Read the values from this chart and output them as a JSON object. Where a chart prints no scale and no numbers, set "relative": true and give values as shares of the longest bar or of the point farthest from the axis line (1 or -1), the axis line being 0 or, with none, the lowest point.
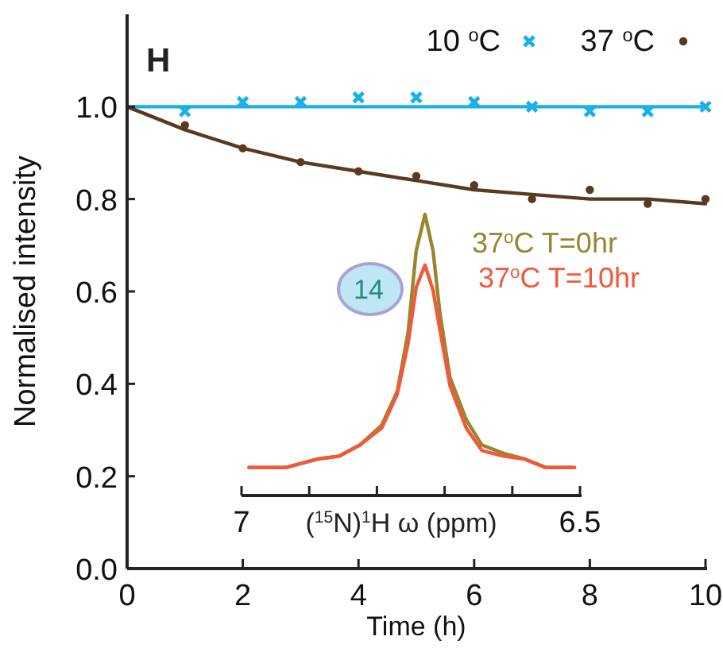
{
  "chart_data": [
    {
      "type": "scatter",
      "xlabel": "Time (h)",
      "ylabel": "Normalised intensity",
      "annotations": [
        "H"
      ],
      "xlim": [
        0,
        10
      ],
      "ylim": [
        0,
        1.2
      ],
      "xticks": [
        0,
        2,
        4,
        6,
        8,
        10
      ],
      "yticks": [
        {
          "value": 0,
          "label": "0.0"
        },
        {
          "value": 0.2,
          "label": "0.2"
        },
        {
          "value": 0.4,
          "label": "0.4"
        },
        {
          "value": 0.6,
          "label": "0.6"
        },
        {
          "value": 0.8,
          "label": "0.8"
        },
        {
          "value": 1,
          "label": "1.0"
        }
      ],
      "grid": false,
      "legend": "top right",
      "series": [
        {
          "type": "scatter",
          "name": "10 $^{o}$C",
          "color": "#1ab0e8",
          "marker": "cross",
          "x": [
            1,
            2,
            3,
            4,
            5,
            6,
            7,
            8,
            9,
            10
          ],
          "values": [
            0.99,
            1.01,
            1.01,
            1.02,
            1.02,
            1.01,
            1.0,
            0.99,
            0.99,
            1.0
          ]
        },
        {
          "type": "line",
          "color": "#1ab0e8",
          "marker": "none",
          "x": [
            0,
            10
          ],
          "values": [
            1.0,
            1.0
          ]
        },
        {
          "type": "scatter",
          "name": "37 $^{o}$C",
          "color": "#5a3a1e",
          "marker": "circle",
          "x": [
            1,
            2,
            3,
            4,
            5,
            6,
            7,
            8,
            9,
            10
          ],
          "values": [
            0.96,
            0.91,
            0.88,
            0.86,
            0.85,
            0.83,
            0.8,
            0.82,
            0.79,
            0.8
          ]
        },
        {
          "type": "line",
          "color": "#5a3a1e",
          "marker": "none",
          "x": [
            0,
            1,
            2,
            3,
            4,
            5,
            6,
            7,
            8,
            9,
            10
          ],
          "values": [
            1.0,
            0.95,
            0.91,
            0.88,
            0.86,
            0.84,
            0.82,
            0.81,
            0.8,
            0.8,
            0.79
          ]
        }
      ]
    },
    {
      "type": "line",
      "relative": true,
      "xlabel": "($^{15}$N)$^{1}$H ω (ppm)",
      "annotations": [
        "14"
      ],
      "xlim": [
        7,
        6.5
      ],
      "xticks": [
        7,
        {
          "value": 6.9,
          "label": null
        },
        {
          "value": 6.8,
          "label": null
        },
        {
          "value": 6.7,
          "label": null
        },
        {
          "value": 6.6,
          "label": null
        },
        6.5
      ],
      "tick_labels": "x",
      "legend": "top right",
      "series": [
        {
          "name": "37$^{o}$C T=0hr",
          "color": "#9a8530",
          "x": [
            6.989,
            6.934,
            6.887,
            6.856,
            6.825,
            6.793,
            6.77,
            6.754,
            6.742,
            6.729,
            6.717,
            6.707,
            6.692,
            6.668,
            6.645,
            6.613,
            6.582,
            6.551,
            6.508
          ],
          "values": [
            0.1,
            0.1,
            0.13,
            0.14,
            0.18,
            0.25,
            0.37,
            0.58,
            0.87,
            1,
            0.87,
            0.65,
            0.42,
            0.27,
            0.18,
            0.15,
            0.13,
            0.1,
            0.1
          ]
        },
        {
          "name": "37$^{o}$C T=10hr",
          "color": "#f05a3a",
          "x": [
            6.989,
            6.934,
            6.887,
            6.856,
            6.825,
            6.793,
            6.77,
            6.754,
            6.742,
            6.729,
            6.717,
            6.707,
            6.692,
            6.668,
            6.645,
            6.613,
            6.582,
            6.551,
            6.508
          ],
          "values": [
            0.1,
            0.1,
            0.13,
            0.14,
            0.18,
            0.24,
            0.36,
            0.54,
            0.74,
            0.82,
            0.73,
            0.59,
            0.39,
            0.24,
            0.16,
            0.14,
            0.13,
            0.1,
            0.1
          ]
        }
      ]
    }
  ]
}
